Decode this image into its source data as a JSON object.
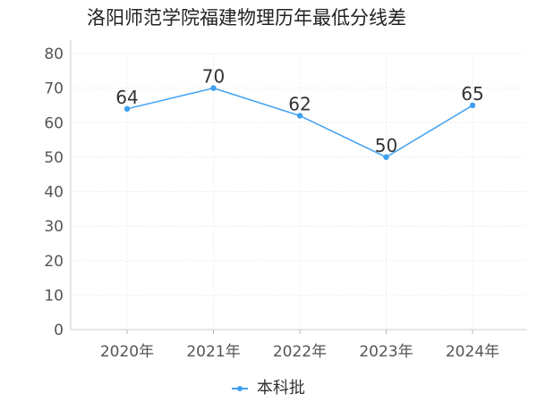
{
  "chart_data": {
    "type": "line",
    "title": "洛阳师范学院福建物理历年最低分线差",
    "categories": [
      "2020年",
      "2021年",
      "2022年",
      "2023年",
      "2024年"
    ],
    "series": [
      {
        "name": "本科批",
        "values": [
          64,
          70,
          62,
          50,
          65
        ],
        "color": "#3fa0f0"
      }
    ],
    "yticks": [
      0,
      10,
      20,
      30,
      40,
      50,
      60,
      70,
      80
    ],
    "ylim": [
      0,
      80
    ],
    "grid": true,
    "legend_position": "bottom-center"
  }
}
